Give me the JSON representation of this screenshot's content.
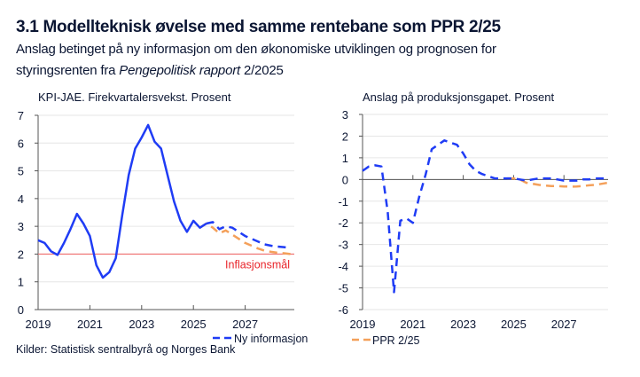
{
  "title": "3.1 Modellteknisk øvelse med samme rentebane som PPR 2/25",
  "subtitle": {
    "line1": "Anslag betinget på ny informasjon om den økonomiske utviklingen og prognosen for",
    "line2_prefix": "styringsrenten fra ",
    "line2_italic": "Pengepolitisk rapport",
    "line2_suffix": " 2/2025"
  },
  "source": "Kilder: Statistisk sentralbyrå og Norges Bank",
  "colors": {
    "ny_informasjon": "#1f3cf5",
    "ppr": "#f4a05a",
    "target": "#f07070",
    "target_label": "#e8242a",
    "grid": "#e6e6e6"
  },
  "chart_data": [
    {
      "type": "line",
      "title": "KPI-JAE. Firekvartalersvekst. Prosent",
      "ylim": [
        0,
        7
      ],
      "yticks": [
        "0",
        "1",
        "2",
        "3",
        "4",
        "5",
        "6",
        "7"
      ],
      "xticks": [
        "2019",
        "2021",
        "2023",
        "2025",
        "2027"
      ],
      "x_start": "2019K1",
      "grid": true,
      "annotation": {
        "label": "Inflasjonsmål",
        "value": 2
      },
      "legend_label": "Ny informasjon",
      "series": [
        {
          "name": "Ny informasjon",
          "style": "solid",
          "start": "2019K1",
          "values": [
            2.5,
            2.4,
            2.1,
            1.97,
            2.4,
            2.9,
            3.45,
            3.1,
            2.65,
            1.6,
            1.15,
            1.35,
            1.85,
            3.4,
            4.85,
            5.8,
            6.2,
            6.65,
            6.05,
            5.8,
            4.85,
            3.9,
            3.2,
            2.8,
            3.2,
            2.95,
            3.1
          ]
        },
        {
          "name": "Ny informasjon",
          "style": "dashed",
          "start": "2025K3",
          "values": [
            3.1,
            3.15,
            2.9,
            3.0,
            2.95,
            2.8,
            2.65,
            2.55,
            2.45,
            2.35,
            2.3,
            2.27,
            2.25,
            2.22
          ]
        },
        {
          "name": "PPR 2/25",
          "style": "dashed",
          "start": "2025K2",
          "values": [
            2.95,
            3.1,
            2.95,
            2.75,
            2.85,
            2.7,
            2.55,
            2.4,
            2.3,
            2.2,
            2.12,
            2.08,
            2.05,
            2.03,
            2.0
          ]
        }
      ]
    },
    {
      "type": "line",
      "title": "Anslag på produksjonsgapet. Prosent",
      "ylim": [
        -6,
        3
      ],
      "yticks": [
        "3",
        "2",
        "1",
        "0",
        "-1",
        "-2",
        "-3",
        "-4",
        "-5",
        "-6"
      ],
      "xticks": [
        "2019",
        "2021",
        "2023",
        "2025",
        "2027"
      ],
      "x_start": "2019K1",
      "grid": true,
      "legend_label": "PPR 2/25",
      "series": [
        {
          "name": "Ny informasjon",
          "style": "dashed",
          "start": "2019K1",
          "values": [
            0.4,
            0.6,
            0.65,
            0.6,
            -1.5,
            -5.2,
            -1.9,
            -1.8,
            -2.0,
            -0.8,
            0.2,
            1.4,
            1.6,
            1.8,
            1.7,
            1.6,
            1.2,
            0.7,
            0.4,
            0.25,
            0.15,
            0.05,
            0.05,
            0.05,
            0.05,
            0.0,
            -0.05,
            0.0,
            0.05,
            0.05,
            0.05,
            0.0,
            -0.05,
            -0.05,
            -0.05,
            0.0,
            0.0,
            0.05,
            0.05,
            0.05
          ]
        },
        {
          "name": "PPR 2/25",
          "style": "dashed",
          "start": "2024K4",
          "values": [
            0.05,
            0.05,
            0.0,
            -0.15,
            -0.2,
            -0.25,
            -0.28,
            -0.3,
            -0.3,
            -0.32,
            -0.33,
            -0.32,
            -0.3,
            -0.27,
            -0.25,
            -0.2,
            -0.15
          ]
        }
      ]
    }
  ]
}
